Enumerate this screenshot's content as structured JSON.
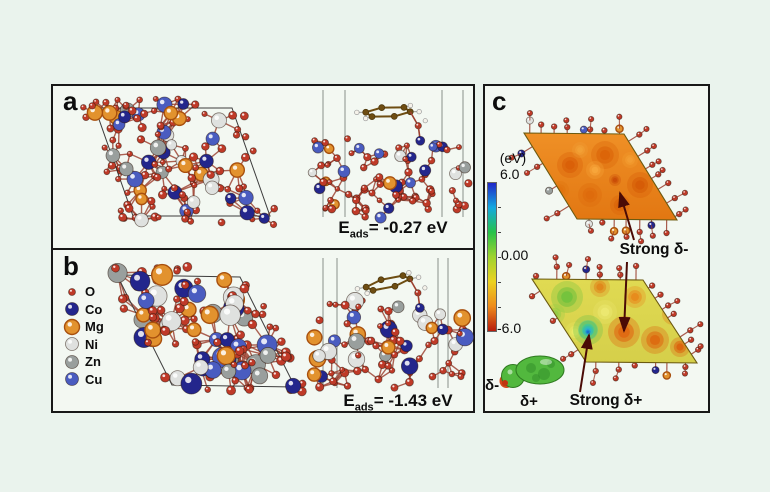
{
  "colors": {
    "background": "#eaf3ed",
    "panel_bg": "#f3f8f2",
    "panel_border": "#181818",
    "bond": "#9c4030",
    "outline": "#3c3c3c",
    "arrow": "#4a0b06",
    "molecule_ring": "#6e4d12",
    "hydrogen": "#f5f2ea",
    "sideview_line": "#8a8f8a",
    "oxygen": "#bf3a28",
    "esp_top_base": [
      "#ef9026",
      "#e27712"
    ],
    "esp_bottom_base": [
      "#e0da52",
      "#d5cf4a"
    ]
  },
  "legend": {
    "items": [
      {
        "symbol": "O",
        "color": "#bf3a28",
        "radius": 3.5
      },
      {
        "symbol": "Co",
        "color": "#23268c",
        "radius": 6.5
      },
      {
        "symbol": "Mg",
        "color": "#e2922e",
        "radius": 7.5
      },
      {
        "symbol": "Ni",
        "color": "#dfe1df",
        "radius": 6.5
      },
      {
        "symbol": "Zn",
        "color": "#999f9d",
        "radius": 6.5
      },
      {
        "symbol": "Cu",
        "color": "#4a5cc0",
        "radius": 6.5
      }
    ]
  },
  "panel_a": {
    "label": "a",
    "eads": {
      "symbol": "E",
      "subscript": "ads",
      "value": "= -0.27 eV"
    }
  },
  "panel_b": {
    "label": "b",
    "eads": {
      "symbol": "E",
      "subscript": "ads",
      "value": "= -1.43 eV"
    }
  },
  "panel_c": {
    "label": "c",
    "colorbar": {
      "title": "(eV)",
      "ticks": [
        "6.0",
        "0.00",
        "-6.0"
      ],
      "gradient": [
        "#2026c8",
        "#15a9e0",
        "#27c24a",
        "#9fd32e",
        "#ecd222",
        "#ee8c1c",
        "#b71c0c"
      ]
    },
    "annotations": {
      "strong_delta_minus": "Strong δ-",
      "strong_delta_plus": "Strong δ+",
      "delta_minus": "δ-",
      "delta_plus": "δ+"
    }
  }
}
